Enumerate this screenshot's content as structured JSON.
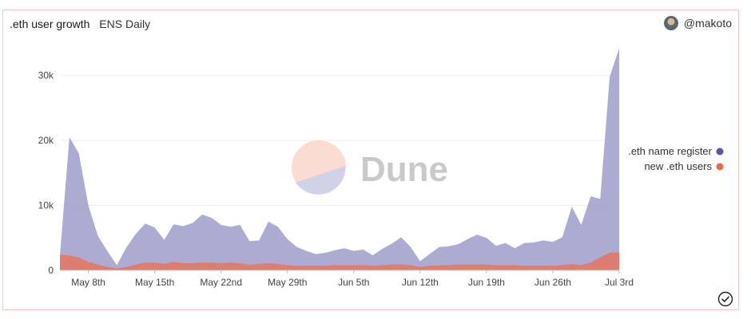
{
  "header": {
    "title": ".eth user growth",
    "subtitle": "ENS Daily",
    "username": "@makoto"
  },
  "watermark": {
    "text": "Dune"
  },
  "colors": {
    "register": "#9d9cc9",
    "register_dot": "#5558a1",
    "new_users": "#e27864",
    "new_users_dot": "#ea6a4f",
    "grid": "#eeeeee",
    "tick": "#444444",
    "border": "#f0c8bd"
  },
  "chart_data": {
    "type": "area",
    "x_start": "May 5th",
    "xtick_labels": [
      "May 8th",
      "May 15th",
      "May 22nd",
      "May 29th",
      "Jun 5th",
      "Jun 12th",
      "Jun 19th",
      "Jun 26th",
      "Jul 3rd"
    ],
    "xtick_offsets": [
      3,
      10,
      17,
      24,
      31,
      38,
      45,
      52,
      59
    ],
    "ytick_labels": [
      "0",
      "10k",
      "20k",
      "30k"
    ],
    "yticks": [
      0,
      10000,
      20000,
      30000
    ],
    "ylim": [
      0,
      35000
    ],
    "grid": true,
    "legend_position": "right",
    "series": [
      {
        "name": ".eth name register",
        "values": [
          2300,
          20500,
          18000,
          10000,
          5300,
          3000,
          800,
          3500,
          5600,
          7200,
          6600,
          4700,
          7100,
          6800,
          7300,
          8600,
          8100,
          7000,
          6700,
          7000,
          4500,
          4600,
          7500,
          6700,
          4800,
          3600,
          3000,
          2500,
          2700,
          3100,
          3400,
          3000,
          3200,
          2300,
          3300,
          4100,
          5100,
          3600,
          1400,
          2500,
          3600,
          3700,
          4000,
          4800,
          5500,
          5000,
          3800,
          4200,
          3400,
          4200,
          4300,
          4600,
          4400,
          5100,
          9800,
          7000,
          11400,
          11000,
          29800,
          34200
        ]
      },
      {
        "name": "new .eth users",
        "values": [
          2400,
          2300,
          2000,
          1300,
          900,
          500,
          300,
          500,
          900,
          1200,
          1200,
          1000,
          1300,
          1100,
          1100,
          1200,
          1200,
          1100,
          1200,
          1100,
          900,
          1000,
          1100,
          1000,
          800,
          700,
          700,
          700,
          700,
          800,
          800,
          800,
          800,
          700,
          800,
          900,
          900,
          800,
          500,
          700,
          800,
          800,
          900,
          900,
          900,
          900,
          800,
          800,
          800,
          700,
          700,
          700,
          700,
          800,
          1000,
          800,
          1200,
          2000,
          2700,
          2800
        ]
      }
    ]
  }
}
